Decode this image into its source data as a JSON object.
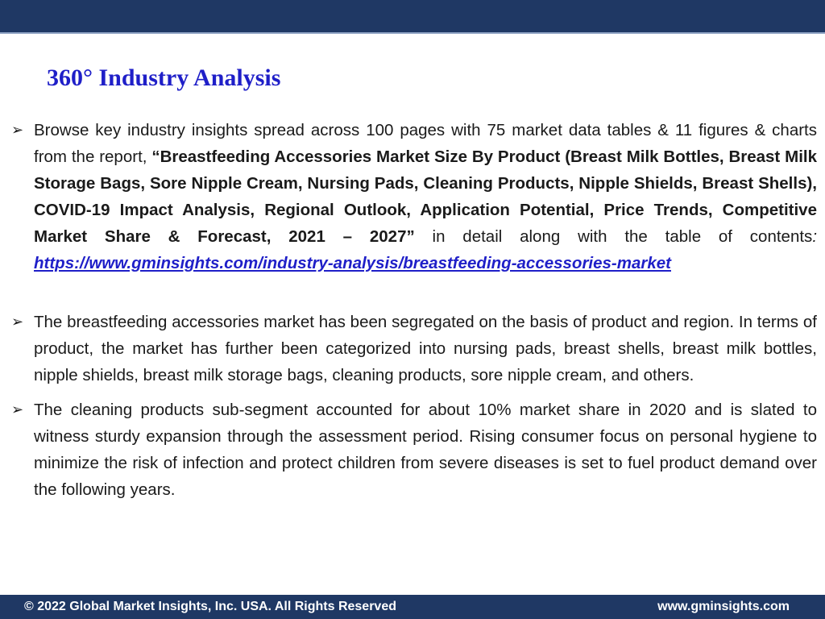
{
  "header": {
    "bar_color": "#1f3864"
  },
  "title": "360° Industry Analysis",
  "bullet_marker": "➢",
  "bullets": [
    {
      "text_before": "Browse key industry insights spread across 100 pages with 75 market data tables & 11  figures & charts from the report, ",
      "report_title": "“Breastfeeding Accessories Market Size By Product (Breast Milk Bottles, Breast Milk Storage Bags, Sore Nipple Cream, Nursing Pads, Cleaning Products, Nipple Shields, Breast Shells), COVID-19 Impact Analysis, Regional Outlook, Application Potential, Price Trends, Competitive Market Share & Forecast, 2021 – 2027”",
      "text_after": " in detail along with the table of contents",
      "colon": ":",
      "link": "https://www.gminsights.com/industry-analysis/breastfeeding-accessories-market"
    },
    {
      "text": "The breastfeeding accessories market has been segregated on the basis of product and region. In terms of product, the market has further been categorized into nursing pads, breast shells, breast milk bottles, nipple shields, breast milk storage bags, cleaning products, sore nipple cream, and others."
    },
    {
      "text": "The cleaning products sub-segment accounted for about 10% market share in 2020 and is slated to witness sturdy expansion through the assessment period. Rising consumer focus on personal hygiene to minimize the risk of infection and protect children from severe diseases is set to fuel product demand over the following years."
    }
  ],
  "footer": {
    "copyright": "© 2022 Global Market Insights, Inc. USA. All Rights Reserved",
    "website": "www.gminsights.com"
  }
}
